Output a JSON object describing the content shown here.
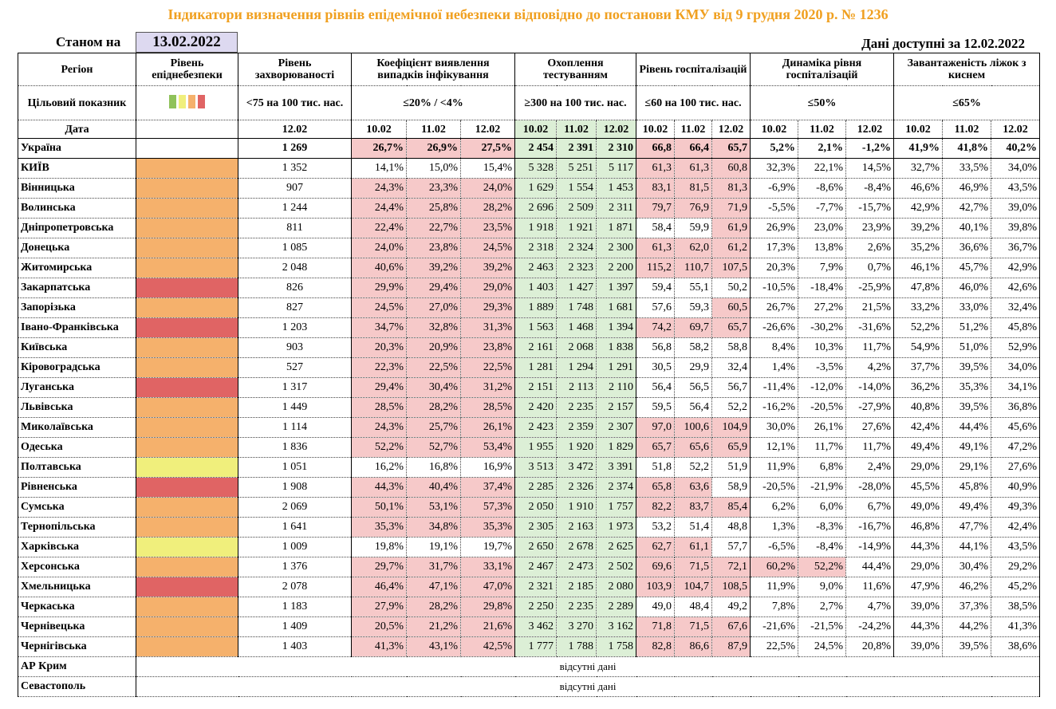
{
  "title": "Індикатори визначення рівнів епідемічної небезпеки відповідно до постанови КМУ від 9 грудня 2020 р. № 1236",
  "status": {
    "as_of_label": "Станом на",
    "as_of_date": "13.02.2022",
    "available": "Дані доступні за 12.02.2022"
  },
  "header": {
    "region": "Регіон",
    "level": "Рівень епіднебезпеки",
    "incidence": "Рівень захворюваності",
    "groups": [
      "Коефіцієнт виявлення випадків інфікування",
      "Охоплення тестуванням",
      "Рівень госпіталізацій",
      "Динаміка рівня госпіталізацій",
      "Завантаженість ліжок з киснем"
    ],
    "target_label": "Цільовий показник",
    "incidence_target": "<75 на 100 тис. нас.",
    "group_targets": [
      "≤20% / <4%",
      "≥300 на 100 тис. нас.",
      "≤60 на 100 тис. нас.",
      "≤50%",
      "≤65%"
    ],
    "date_label": "Дата",
    "incidence_date": "12.02",
    "dates": [
      "10.02",
      "11.02",
      "12.02"
    ]
  },
  "colors": {
    "highlight": "#f6c9c9",
    "testing": "#dcefd6",
    "legend": [
      "#8fc25a",
      "#f0ef7c",
      "#f5b16c",
      "#e06464"
    ]
  },
  "rows": [
    {
      "region": "Україна",
      "bold": true,
      "cells": [
        "1 269",
        "26,7%",
        "26,9%",
        "27,5%",
        "2 454",
        "2 391",
        "2 310",
        "66,8",
        "66,4",
        "65,7",
        "5,2%",
        "2,1%",
        "-1,2%",
        "41,9%",
        "41,8%",
        "40,2%"
      ],
      "hl": [
        1,
        2,
        3,
        7,
        8,
        9
      ]
    },
    {
      "region": "КИЇВ",
      "level_color": "#f5b16c",
      "cells": [
        "1 352",
        "14,1%",
        "15,0%",
        "15,4%",
        "5 328",
        "5 251",
        "5 117",
        "61,3",
        "61,3",
        "60,8",
        "32,3%",
        "22,1%",
        "14,5%",
        "32,7%",
        "33,5%",
        "34,0%"
      ],
      "hl": [
        7,
        8,
        9
      ]
    },
    {
      "region": "Вінницька",
      "level_color": "#f5b16c",
      "cells": [
        "907",
        "24,3%",
        "23,3%",
        "24,0%",
        "1 629",
        "1 554",
        "1 453",
        "83,1",
        "81,5",
        "81,3",
        "-6,9%",
        "-8,6%",
        "-8,4%",
        "46,6%",
        "46,9%",
        "43,5%"
      ],
      "hl": [
        1,
        2,
        3,
        7,
        8,
        9
      ]
    },
    {
      "region": "Волинська",
      "level_color": "#f5b16c",
      "cells": [
        "1 244",
        "24,4%",
        "25,8%",
        "28,2%",
        "2 696",
        "2 509",
        "2 311",
        "79,7",
        "76,9",
        "71,9",
        "-5,5%",
        "-7,7%",
        "-15,7%",
        "42,9%",
        "42,7%",
        "39,0%"
      ],
      "hl": [
        1,
        2,
        3,
        7,
        8,
        9
      ]
    },
    {
      "region": "Дніпропетровська",
      "level_color": "#f5b16c",
      "cells": [
        "811",
        "22,4%",
        "22,7%",
        "23,5%",
        "1 918",
        "1 921",
        "1 871",
        "58,4",
        "59,9",
        "61,9",
        "26,9%",
        "23,0%",
        "23,9%",
        "39,2%",
        "40,1%",
        "39,8%"
      ],
      "hl": [
        1,
        2,
        3,
        9
      ]
    },
    {
      "region": "Донецька",
      "level_color": "#f5b16c",
      "cells": [
        "1 085",
        "24,0%",
        "23,8%",
        "24,5%",
        "2 318",
        "2 324",
        "2 300",
        "61,3",
        "62,0",
        "61,2",
        "17,3%",
        "13,8%",
        "2,6%",
        "35,2%",
        "36,6%",
        "36,7%"
      ],
      "hl": [
        1,
        2,
        3,
        7,
        8,
        9
      ]
    },
    {
      "region": "Житомирська",
      "level_color": "#f5b16c",
      "cells": [
        "2 048",
        "40,6%",
        "39,2%",
        "39,2%",
        "2 463",
        "2 323",
        "2 200",
        "115,2",
        "110,7",
        "107,5",
        "20,3%",
        "7,9%",
        "0,7%",
        "46,1%",
        "45,7%",
        "42,9%"
      ],
      "hl": [
        1,
        2,
        3,
        7,
        8,
        9
      ]
    },
    {
      "region": "Закарпатська",
      "level_color": "#e06464",
      "cells": [
        "826",
        "29,9%",
        "29,4%",
        "29,0%",
        "1 403",
        "1 427",
        "1 397",
        "59,4",
        "55,1",
        "50,2",
        "-10,5%",
        "-18,4%",
        "-25,9%",
        "47,8%",
        "46,0%",
        "42,6%"
      ],
      "hl": [
        1,
        2,
        3
      ]
    },
    {
      "region": "Запорізька",
      "level_color": "#f5b16c",
      "cells": [
        "827",
        "24,5%",
        "27,0%",
        "29,3%",
        "1 889",
        "1 748",
        "1 681",
        "57,6",
        "59,3",
        "60,5",
        "26,7%",
        "27,2%",
        "21,5%",
        "33,2%",
        "33,0%",
        "32,4%"
      ],
      "hl": [
        1,
        2,
        3,
        9
      ]
    },
    {
      "region": "Івано-Франківська",
      "level_color": "#e06464",
      "cells": [
        "1 203",
        "34,7%",
        "32,8%",
        "31,3%",
        "1 563",
        "1 468",
        "1 394",
        "74,2",
        "69,7",
        "65,7",
        "-26,6%",
        "-30,2%",
        "-31,6%",
        "52,2%",
        "51,2%",
        "45,8%"
      ],
      "hl": [
        1,
        2,
        3,
        7,
        8,
        9
      ]
    },
    {
      "region": "Київська",
      "level_color": "#f5b16c",
      "cells": [
        "903",
        "20,3%",
        "20,9%",
        "23,8%",
        "2 161",
        "2 068",
        "1 838",
        "56,8",
        "58,2",
        "58,8",
        "8,4%",
        "10,3%",
        "11,7%",
        "54,9%",
        "51,0%",
        "52,9%"
      ],
      "hl": [
        1,
        2,
        3
      ]
    },
    {
      "region": "Кіровоградська",
      "level_color": "#f5b16c",
      "cells": [
        "527",
        "22,3%",
        "22,5%",
        "22,5%",
        "1 281",
        "1 294",
        "1 291",
        "30,5",
        "29,9",
        "32,4",
        "1,4%",
        "-3,5%",
        "4,2%",
        "37,7%",
        "39,5%",
        "34,0%"
      ],
      "hl": [
        1,
        2,
        3
      ]
    },
    {
      "region": "Луганська",
      "level_color": "#e06464",
      "cells": [
        "1 317",
        "29,4%",
        "30,4%",
        "31,2%",
        "2 151",
        "2 113",
        "2 110",
        "56,4",
        "56,5",
        "56,7",
        "-11,4%",
        "-12,0%",
        "-14,0%",
        "36,2%",
        "35,3%",
        "34,1%"
      ],
      "hl": [
        1,
        2,
        3
      ]
    },
    {
      "region": "Львівська",
      "level_color": "#f5b16c",
      "cells": [
        "1 449",
        "28,5%",
        "28,2%",
        "28,5%",
        "2 420",
        "2 235",
        "2 157",
        "59,5",
        "56,4",
        "52,2",
        "-16,2%",
        "-20,5%",
        "-27,9%",
        "40,8%",
        "39,5%",
        "36,8%"
      ],
      "hl": [
        1,
        2,
        3
      ]
    },
    {
      "region": "Миколаївська",
      "level_color": "#f5b16c",
      "cells": [
        "1 114",
        "24,3%",
        "25,7%",
        "26,1%",
        "2 423",
        "2 359",
        "2 307",
        "97,0",
        "100,6",
        "104,9",
        "30,0%",
        "26,1%",
        "27,6%",
        "42,4%",
        "44,4%",
        "45,6%"
      ],
      "hl": [
        1,
        2,
        3,
        7,
        8,
        9
      ]
    },
    {
      "region": "Одеська",
      "level_color": "#f5b16c",
      "cells": [
        "1 836",
        "52,2%",
        "52,7%",
        "53,4%",
        "1 955",
        "1 920",
        "1 829",
        "65,7",
        "65,6",
        "65,9",
        "12,1%",
        "11,7%",
        "11,7%",
        "49,4%",
        "49,1%",
        "47,2%"
      ],
      "hl": [
        1,
        2,
        3,
        7,
        8,
        9
      ]
    },
    {
      "region": "Полтавська",
      "level_color": "#f0ef7c",
      "cells": [
        "1 051",
        "16,2%",
        "16,8%",
        "16,9%",
        "3 513",
        "3 472",
        "3 391",
        "51,8",
        "52,2",
        "51,9",
        "11,9%",
        "6,8%",
        "2,4%",
        "29,0%",
        "29,1%",
        "27,6%"
      ],
      "hl": []
    },
    {
      "region": "Рівненська",
      "level_color": "#e06464",
      "cells": [
        "1 908",
        "44,3%",
        "40,4%",
        "37,4%",
        "2 285",
        "2 326",
        "2 374",
        "65,8",
        "63,6",
        "58,9",
        "-20,5%",
        "-21,9%",
        "-28,0%",
        "45,5%",
        "45,8%",
        "40,9%"
      ],
      "hl": [
        1,
        2,
        3,
        7,
        8
      ]
    },
    {
      "region": "Сумська",
      "level_color": "#f5b16c",
      "cells": [
        "2 069",
        "50,1%",
        "53,1%",
        "57,3%",
        "2 050",
        "1 910",
        "1 757",
        "82,2",
        "83,7",
        "85,4",
        "6,2%",
        "6,0%",
        "6,7%",
        "49,0%",
        "49,4%",
        "49,3%"
      ],
      "hl": [
        1,
        2,
        3,
        7,
        8,
        9
      ]
    },
    {
      "region": "Тернопільська",
      "level_color": "#f5b16c",
      "cells": [
        "1 641",
        "35,3%",
        "34,8%",
        "35,3%",
        "2 305",
        "2 163",
        "1 973",
        "53,2",
        "51,4",
        "48,8",
        "1,3%",
        "-8,3%",
        "-16,7%",
        "46,8%",
        "47,7%",
        "42,4%"
      ],
      "hl": [
        1,
        2,
        3
      ]
    },
    {
      "region": "Харківська",
      "level_color": "#f0ef7c",
      "cells": [
        "1 009",
        "19,8%",
        "19,1%",
        "19,7%",
        "2 650",
        "2 678",
        "2 625",
        "62,7",
        "61,1",
        "57,7",
        "-6,5%",
        "-8,4%",
        "-14,9%",
        "44,3%",
        "44,1%",
        "43,5%"
      ],
      "hl": [
        7,
        8
      ]
    },
    {
      "region": "Херсонська",
      "level_color": "#f5b16c",
      "cells": [
        "1 376",
        "29,7%",
        "31,7%",
        "33,1%",
        "2 467",
        "2 473",
        "2 502",
        "69,6",
        "71,5",
        "72,1",
        "60,2%",
        "52,2%",
        "44,4%",
        "29,0%",
        "30,4%",
        "29,2%"
      ],
      "hl": [
        1,
        2,
        3,
        7,
        8,
        9,
        10,
        11
      ]
    },
    {
      "region": "Хмельницька",
      "level_color": "#e06464",
      "cells": [
        "2 078",
        "46,4%",
        "47,1%",
        "47,0%",
        "2 321",
        "2 185",
        "2 080",
        "103,9",
        "104,7",
        "108,5",
        "11,9%",
        "9,0%",
        "11,6%",
        "47,9%",
        "46,2%",
        "45,2%"
      ],
      "hl": [
        1,
        2,
        3,
        7,
        8,
        9
      ]
    },
    {
      "region": "Черкаська",
      "level_color": "#f5b16c",
      "cells": [
        "1 183",
        "27,9%",
        "28,2%",
        "29,8%",
        "2 250",
        "2 235",
        "2 289",
        "49,0",
        "48,4",
        "49,2",
        "7,8%",
        "2,7%",
        "4,7%",
        "39,0%",
        "37,3%",
        "38,5%"
      ],
      "hl": [
        1,
        2,
        3
      ]
    },
    {
      "region": "Чернівецька",
      "level_color": "#f5b16c",
      "cells": [
        "1 409",
        "20,5%",
        "21,2%",
        "21,6%",
        "3 462",
        "3 270",
        "3 162",
        "71,8",
        "71,5",
        "67,6",
        "-21,6%",
        "-21,5%",
        "-24,2%",
        "44,3%",
        "44,2%",
        "41,3%"
      ],
      "hl": [
        1,
        2,
        3,
        7,
        8,
        9
      ]
    },
    {
      "region": "Чернігівська",
      "level_color": "#f5b16c",
      "cells": [
        "1 403",
        "41,3%",
        "43,1%",
        "42,5%",
        "1 777",
        "1 788",
        "1 758",
        "82,8",
        "86,6",
        "87,9",
        "22,5%",
        "24,5%",
        "20,8%",
        "39,0%",
        "39,5%",
        "38,6%"
      ],
      "hl": [
        1,
        2,
        3,
        7,
        8,
        9
      ]
    },
    {
      "region": "АР Крим",
      "note": "відсутні дані"
    },
    {
      "region": "Севастополь",
      "note": "відсутні дані"
    }
  ]
}
